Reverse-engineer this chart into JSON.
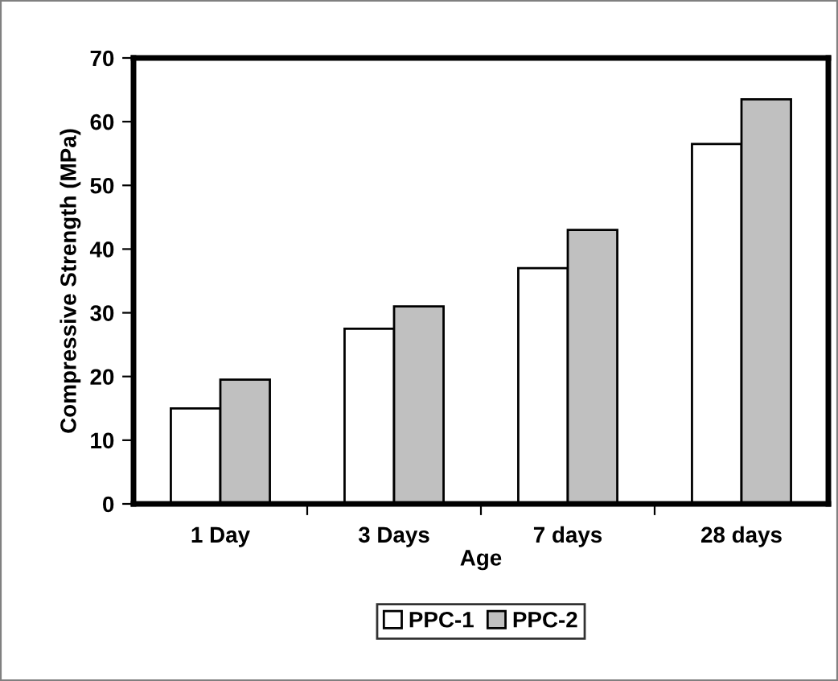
{
  "chart_data": {
    "type": "bar",
    "xlabel": "Age",
    "ylabel": "Compressive Strength (MPa)",
    "categories": [
      "1 Day",
      "3 Days",
      "7 days",
      "28 days"
    ],
    "series": [
      {
        "name": "PPC-1",
        "color": "#ffffff",
        "values": [
          15,
          27.5,
          37,
          56.5
        ]
      },
      {
        "name": "PPC-2",
        "color": "#c0c0c0",
        "values": [
          19.5,
          31,
          43,
          63.5
        ]
      }
    ],
    "ylim": [
      0,
      70
    ],
    "yticks": [
      0,
      10,
      20,
      30,
      40,
      50,
      60,
      70
    ],
    "grid": false,
    "legend": "bottom"
  }
}
